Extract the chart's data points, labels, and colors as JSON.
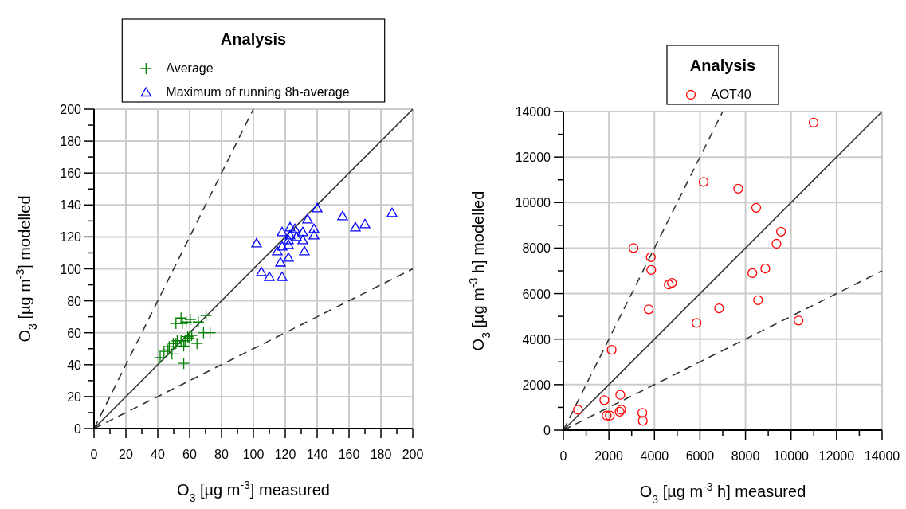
{
  "chart_data": [
    {
      "type": "scatter",
      "xlabel": "O$_{3}$ [µg m$^{-3}$] measured",
      "ylabel": "O$_{3}$ [µg m$^{-3}$] modelled",
      "legend_title": "Analysis",
      "legend": "top",
      "grid": true,
      "xlim": [
        0,
        200
      ],
      "ylim": [
        0,
        200
      ],
      "xticks": [
        0,
        {
          "value": 10,
          "label": null
        },
        20,
        {
          "value": 30,
          "label": null
        },
        40,
        {
          "value": 50,
          "label": null
        },
        60,
        {
          "value": 70,
          "label": null
        },
        80,
        {
          "value": 90,
          "label": null
        },
        100,
        {
          "value": 110,
          "label": null
        },
        120,
        {
          "value": 130,
          "label": null
        },
        140,
        {
          "value": 150,
          "label": null
        },
        160,
        {
          "value": 170,
          "label": null
        },
        180,
        {
          "value": 190,
          "label": null
        },
        200
      ],
      "yticks": [
        0,
        {
          "value": 10,
          "label": null
        },
        20,
        {
          "value": 30,
          "label": null
        },
        40,
        {
          "value": 50,
          "label": null
        },
        60,
        {
          "value": 70,
          "label": null
        },
        80,
        {
          "value": 90,
          "label": null
        },
        100,
        {
          "value": 110,
          "label": null
        },
        120,
        {
          "value": 130,
          "label": null
        },
        140,
        {
          "value": 150,
          "label": null
        },
        160,
        {
          "value": 170,
          "label": null
        },
        180,
        {
          "value": 190,
          "label": null
        },
        200
      ],
      "series": [
        {
          "name": "Average",
          "color": "#008000",
          "marker": "cross",
          "x": [
            41.5,
            43.9,
            46.4,
            48.9,
            47.2,
            49.7,
            52.2,
            51.4,
            54.6,
            56.3,
            57.1,
            58.8,
            61.3,
            64.6,
            68.7,
            72.8,
            56.3,
            51.4,
            54.6,
            55.4,
            57.8,
            60.4,
            65.4,
            70.3,
            59.6
          ],
          "values": [
            44.5,
            48.3,
            49.2,
            46.7,
            51.3,
            53.3,
            55,
            53.3,
            55,
            51.7,
            55,
            57.5,
            58.3,
            53.3,
            60,
            60,
            40.8,
            65.8,
            69.2,
            65.8,
            66.7,
            68.3,
            66.7,
            70.8,
            56.7
          ]
        },
        {
          "name": "Maximum of running 8h-average",
          "color": "#0000ff",
          "marker": "triangle",
          "x": [
            140,
            156,
            187,
            164,
            170,
            134,
            123,
            126,
            118,
            131,
            138,
            138,
            131,
            127,
            123,
            122,
            122,
            118,
            115,
            132,
            122,
            117,
            102,
            105,
            110,
            118
          ],
          "values": [
            138,
            133,
            135,
            126,
            128,
            131,
            126,
            125,
            123,
            123,
            125,
            121,
            118,
            120,
            121,
            118,
            115,
            114,
            111,
            111,
            107,
            104,
            116,
            98,
            95,
            95
          ]
        },
        {
          "type": "line",
          "color": "#333333",
          "line_style": "solid",
          "x": [
            0,
            200
          ],
          "values": [
            0,
            200
          ]
        },
        {
          "type": "line",
          "color": "#333333",
          "line_style": "dashed",
          "x": [
            0,
            100
          ],
          "values": [
            0,
            200
          ]
        },
        {
          "type": "line",
          "color": "#333333",
          "line_style": "dashed",
          "x": [
            0,
            200
          ],
          "values": [
            0,
            100
          ]
        }
      ]
    },
    {
      "type": "scatter",
      "xlabel": "O$_{3}$ [µg m$^{-3}$ h] measured",
      "ylabel": "O$_{3}$ [µg m$^{-3}$ h] modelled",
      "legend_title": "Analysis",
      "legend": "top",
      "grid": true,
      "xlim": [
        0,
        14000
      ],
      "ylim": [
        0,
        14000
      ],
      "xticks": [
        0,
        {
          "value": 1000,
          "label": null
        },
        2000,
        {
          "value": 3000,
          "label": null
        },
        4000,
        {
          "value": 5000,
          "label": null
        },
        6000,
        {
          "value": 7000,
          "label": null
        },
        8000,
        {
          "value": 9000,
          "label": null
        },
        10000,
        {
          "value": 11000,
          "label": null
        },
        12000,
        {
          "value": 13000,
          "label": null
        },
        14000
      ],
      "yticks": [
        0,
        {
          "value": 1000,
          "label": null
        },
        2000,
        {
          "value": 3000,
          "label": null
        },
        4000,
        {
          "value": 5000,
          "label": null
        },
        6000,
        {
          "value": 7000,
          "label": null
        },
        8000,
        {
          "value": 9000,
          "label": null
        },
        10000,
        {
          "value": 11000,
          "label": null
        },
        12000,
        {
          "value": 13000,
          "label": null
        },
        14000
      ],
      "series": [
        {
          "name": "AOT40",
          "color": "#ff0000",
          "marker": "circle",
          "x": [
            640,
            2120,
            1800,
            2500,
            1900,
            2040,
            2470,
            2540,
            3470,
            3490,
            3080,
            3840,
            3860,
            3750,
            4630,
            4770,
            5850,
            6840,
            8300,
            8870,
            8550,
            9360,
            10330,
            10990,
            6160,
            7680,
            8470,
            9560
          ],
          "values": [
            900,
            3530,
            1320,
            1550,
            640,
            640,
            810,
            900,
            760,
            410,
            8000,
            7600,
            7040,
            5310,
            6400,
            6470,
            4710,
            5350,
            6900,
            7100,
            5710,
            8190,
            4820,
            13510,
            10910,
            10610,
            9770,
            8720
          ]
        },
        {
          "type": "line",
          "color": "#333333",
          "line_style": "solid",
          "x": [
            0,
            14000
          ],
          "values": [
            0,
            14000
          ]
        },
        {
          "type": "line",
          "color": "#333333",
          "line_style": "dashed",
          "x": [
            0,
            7000
          ],
          "values": [
            0,
            14000
          ]
        },
        {
          "type": "line",
          "color": "#333333",
          "line_style": "dashed",
          "x": [
            0,
            14000
          ],
          "values": [
            0,
            7000
          ]
        }
      ]
    }
  ]
}
